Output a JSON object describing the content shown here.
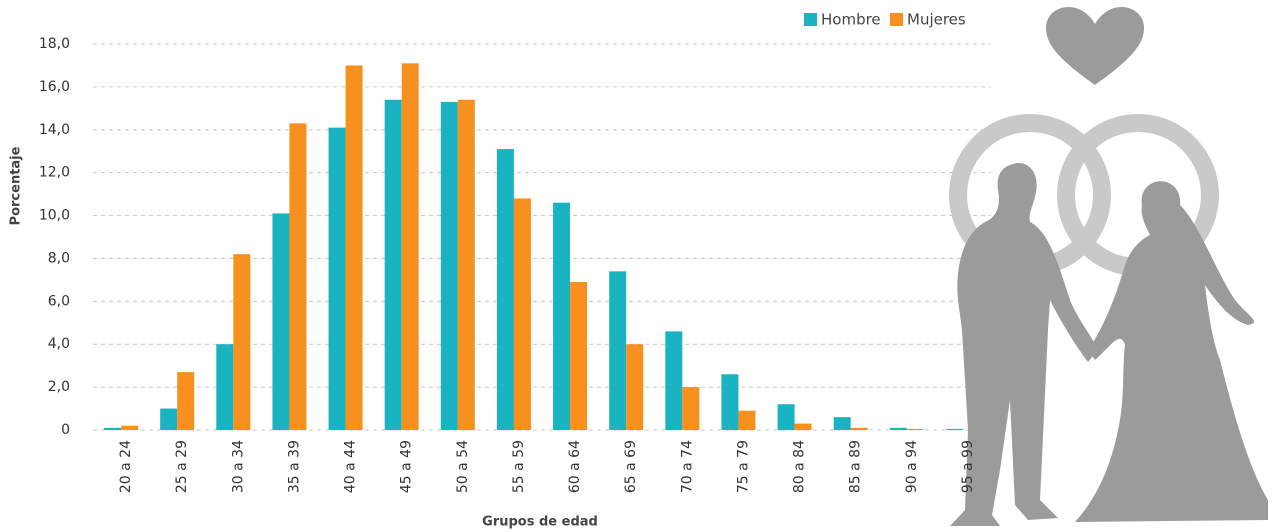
{
  "chart_data": {
    "type": "bar",
    "x_label": "Grupos de edad",
    "y_label": "Porcentaje",
    "categories": [
      "20 a 24",
      "25 a 29",
      "30 a 34",
      "35 a 39",
      "40 a 44",
      "45 a 49",
      "50 a 54",
      "55 a 59",
      "60 a 64",
      "65 a 69",
      "70 a 74",
      "75 a 79",
      "80 a 84",
      "85 a 89",
      "90 a 94",
      "95 a 99"
    ],
    "series": [
      {
        "name": "Hombre",
        "color": "#1ab3c2",
        "values": [
          0.1,
          1.0,
          4.0,
          10.1,
          14.1,
          15.4,
          15.3,
          13.1,
          10.6,
          7.4,
          4.6,
          2.6,
          1.2,
          0.6,
          0.1,
          0.05
        ]
      },
      {
        "name": "Mujeres",
        "color": "#f7901e",
        "values": [
          0.2,
          2.7,
          8.2,
          14.3,
          17.0,
          17.1,
          15.4,
          10.8,
          6.9,
          4.0,
          2.0,
          0.9,
          0.3,
          0.1,
          0.05,
          0.0
        ]
      }
    ],
    "ylim": [
      0,
      18
    ],
    "yticks": [
      0,
      {
        "value": 2,
        "label": "2,0"
      },
      {
        "value": 4,
        "label": "4,0"
      },
      {
        "value": 6,
        "label": "6,0"
      },
      {
        "value": 8,
        "label": "8,0"
      },
      {
        "value": 10,
        "label": "10,0"
      },
      {
        "value": 12,
        "label": "12,0"
      },
      {
        "value": 14,
        "label": "14,0"
      },
      {
        "value": 16,
        "label": "16,0"
      },
      {
        "value": 18,
        "label": "18,0"
      }
    ],
    "grid": true,
    "legend": "top-right"
  }
}
